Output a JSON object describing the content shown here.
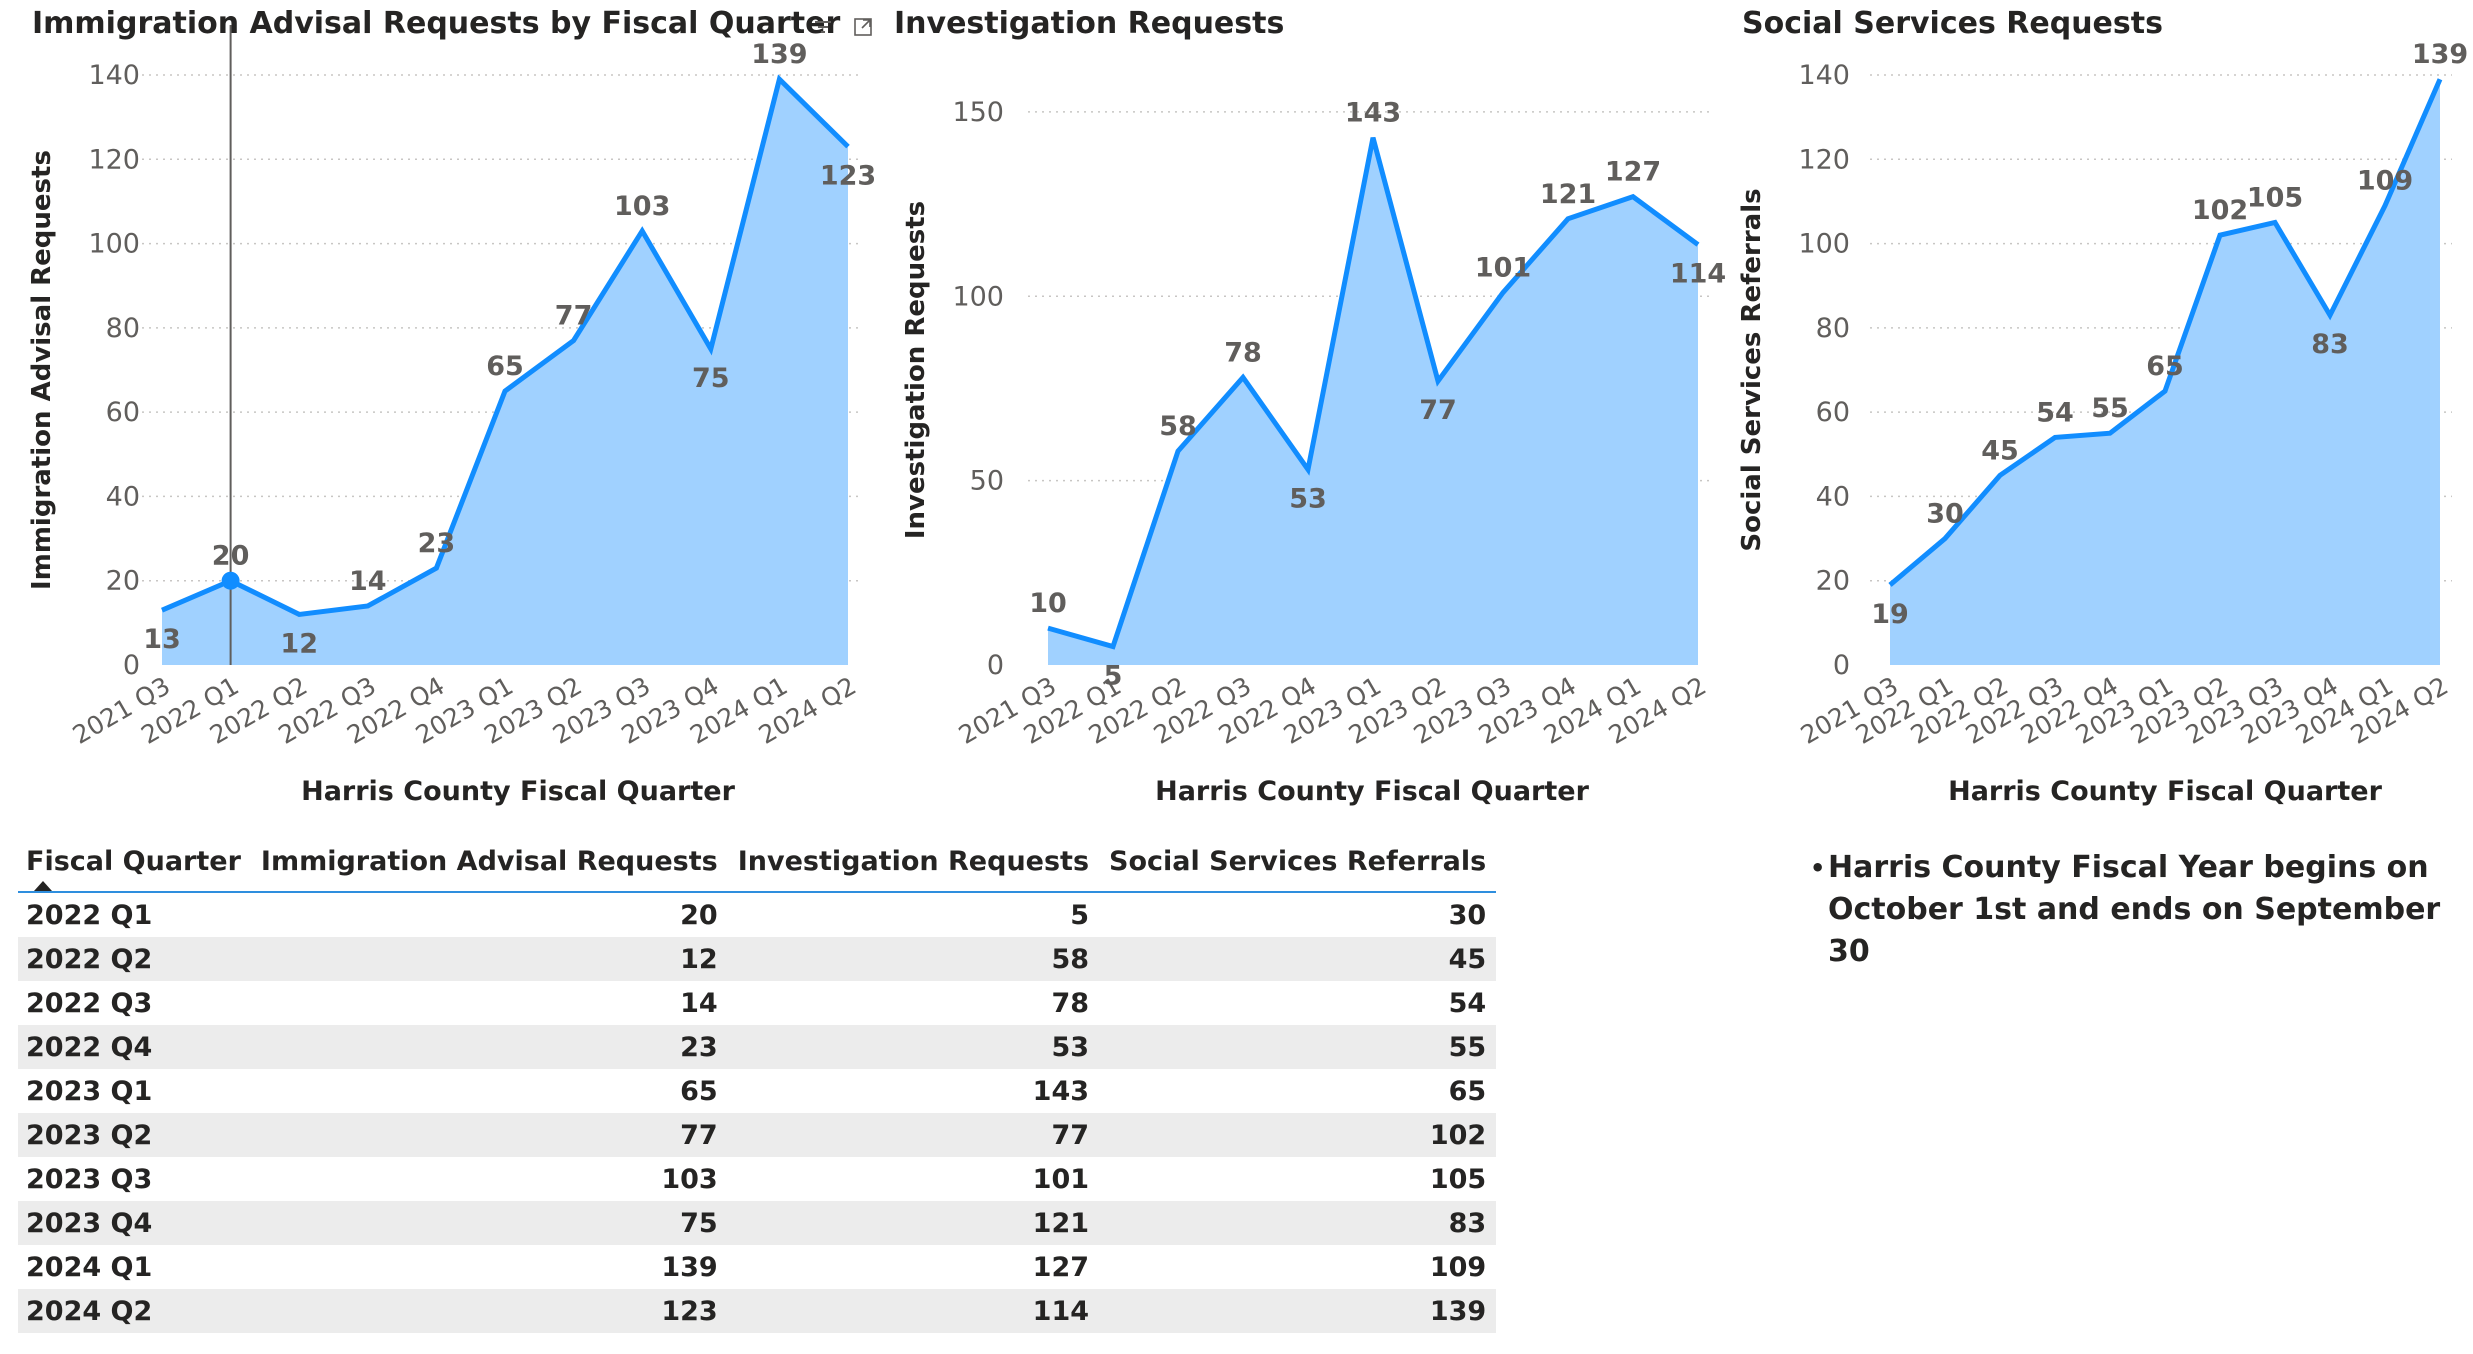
{
  "charts": [
    {
      "id": "immigration",
      "title": "Immigration Advisal Requests by Fiscal Quarter",
      "ylabel": "Immigration Advisal Requests",
      "xlabel": "Harris County Fiscal Quarter"
    },
    {
      "id": "investigation",
      "title": "Investigation Requests",
      "ylabel": "Investigation Requests",
      "xlabel": "Harris County Fiscal Quarter"
    },
    {
      "id": "social",
      "title": "Social Services Requests",
      "ylabel": "Social Services Referrals",
      "xlabel": "Harris County Fiscal Quarter"
    }
  ],
  "chart_data": [
    {
      "type": "area",
      "title": "Immigration Advisal Requests by Fiscal Quarter",
      "xlabel": "Harris County Fiscal Quarter",
      "ylabel": "Immigration Advisal Requests",
      "categories": [
        "2021 Q3",
        "2022 Q1",
        "2022 Q2",
        "2022 Q3",
        "2022 Q4",
        "2023 Q1",
        "2023 Q2",
        "2023 Q3",
        "2023 Q4",
        "2024 Q1",
        "2024 Q2"
      ],
      "values": [
        13,
        20,
        12,
        14,
        23,
        65,
        77,
        103,
        75,
        139,
        123
      ],
      "ylim": [
        0,
        140
      ],
      "yticks": [
        0,
        20,
        40,
        60,
        80,
        100,
        120,
        140
      ],
      "grid": true,
      "highlight_index": 1,
      "color": "#118dff",
      "fill": "#a0d1ff"
    },
    {
      "type": "area",
      "title": "Investigation Requests",
      "xlabel": "Harris County Fiscal Quarter",
      "ylabel": "Investigation Requests",
      "categories": [
        "2021 Q3",
        "2022 Q1",
        "2022 Q2",
        "2022 Q3",
        "2022 Q4",
        "2023 Q1",
        "2023 Q2",
        "2023 Q3",
        "2023 Q4",
        "2024 Q1",
        "2024 Q2"
      ],
      "values": [
        10,
        5,
        58,
        78,
        53,
        143,
        77,
        101,
        121,
        127,
        114
      ],
      "ylim": [
        0,
        160
      ],
      "yticks": [
        0,
        50,
        100,
        150
      ],
      "grid": true,
      "color": "#118dff",
      "fill": "#a0d1ff"
    },
    {
      "type": "area",
      "title": "Social Services Requests",
      "xlabel": "Harris County Fiscal Quarter",
      "ylabel": "Social Services Referrals",
      "categories": [
        "2021 Q3",
        "2022 Q1",
        "2022 Q2",
        "2022 Q3",
        "2022 Q4",
        "2023 Q1",
        "2023 Q2",
        "2023 Q3",
        "2023 Q4",
        "2024 Q1",
        "2024 Q2"
      ],
      "values": [
        19,
        30,
        45,
        54,
        55,
        65,
        102,
        105,
        83,
        109,
        139
      ],
      "ylim": [
        0,
        140
      ],
      "yticks": [
        0,
        20,
        40,
        60,
        80,
        100,
        120,
        140
      ],
      "grid": true,
      "color": "#118dff",
      "fill": "#a0d1ff"
    },
    {
      "type": "table",
      "columns": [
        "Fiscal Quarter",
        "Immigration Advisal Requests",
        "Investigation Requests",
        "Social Services Referrals"
      ],
      "sorted_column": "Fiscal Quarter",
      "rows": [
        [
          "2022 Q1",
          "20",
          "5",
          "30"
        ],
        [
          "2022 Q2",
          "12",
          "58",
          "45"
        ],
        [
          "2022 Q3",
          "14",
          "78",
          "54"
        ],
        [
          "2022 Q4",
          "23",
          "53",
          "55"
        ],
        [
          "2023 Q1",
          "65",
          "143",
          "65"
        ],
        [
          "2023 Q2",
          "77",
          "77",
          "102"
        ],
        [
          "2023 Q3",
          "103",
          "101",
          "105"
        ],
        [
          "2023 Q4",
          "75",
          "121",
          "83"
        ],
        [
          "2024 Q1",
          "139",
          "127",
          "109"
        ],
        [
          "2024 Q2",
          "123",
          "114",
          "139"
        ]
      ]
    }
  ],
  "note": {
    "bullet": "•",
    "line1": "Harris County Fiscal Year begins on",
    "line2": "October 1st and ends on September 30"
  },
  "icons": {
    "filter": "filter-icon",
    "focus": "focus-mode-icon",
    "sort": "sort-ascending-icon"
  }
}
